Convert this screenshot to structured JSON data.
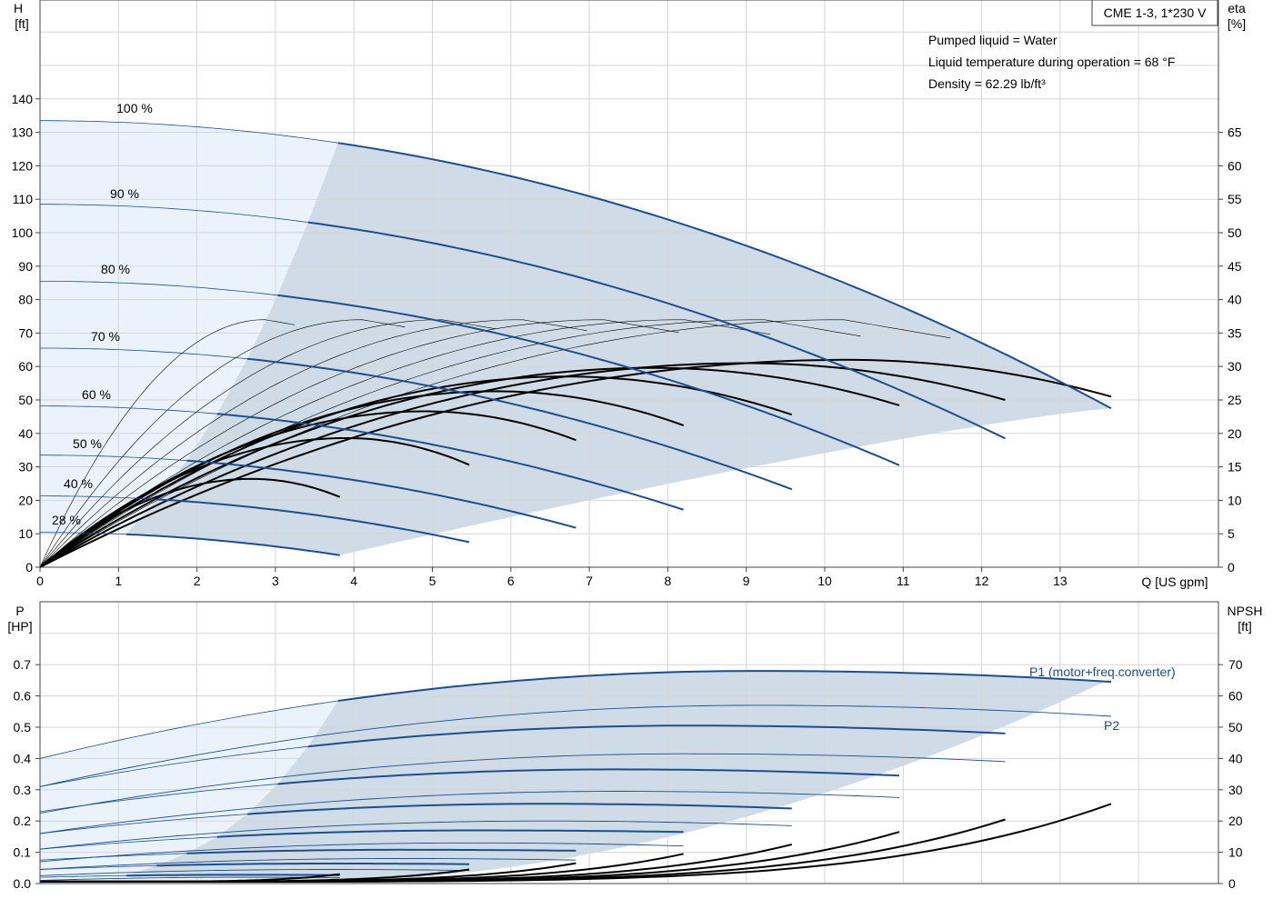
{
  "chart_data": [
    {
      "type": "line",
      "name": "pump-performance",
      "title_box": "CME 1-3, 1*230 V",
      "notes": [
        "Pumped liquid = Water",
        "Liquid temperature during operation = 68 °F",
        "Density = 62.29 lb/ft³"
      ],
      "xlabel": "Q [US gpm]",
      "xlim": [
        0,
        15
      ],
      "xticks": [
        0,
        1,
        2,
        3,
        4,
        5,
        6,
        7,
        8,
        9,
        10,
        11,
        12,
        13
      ],
      "ylabel_left": [
        "H",
        "[ft]"
      ],
      "ylim_left": [
        0,
        160
      ],
      "yticks_left": [
        0,
        10,
        20,
        30,
        40,
        50,
        60,
        70,
        80,
        90,
        100,
        110,
        120,
        130,
        140
      ],
      "ylabel_right": [
        "eta",
        "[%]"
      ],
      "ylim_right": [
        0,
        80
      ],
      "yticks_right": [
        0,
        5,
        10,
        15,
        20,
        25,
        30,
        35,
        40,
        45,
        50,
        55,
        60,
        65
      ],
      "speed_curves": [
        {
          "label": "100 %",
          "h0": 133.5,
          "qmax": 13.65,
          "hend": 47.5
        },
        {
          "label": "90 %",
          "h0": 108.5,
          "qmax": 12.3,
          "hend": 38.5
        },
        {
          "label": "80 %",
          "h0": 85.5,
          "qmax": 10.95,
          "hend": 30.5
        },
        {
          "label": "70 %",
          "h0": 65.5,
          "qmax": 9.58,
          "hend": 23.3
        },
        {
          "label": "60 %",
          "h0": 48.2,
          "qmax": 8.2,
          "hend": 17.2
        },
        {
          "label": "50 %",
          "h0": 33.5,
          "qmax": 6.83,
          "hend": 11.8
        },
        {
          "label": "40 %",
          "h0": 21.3,
          "qmax": 5.47,
          "hend": 7.5
        },
        {
          "label": "28 %",
          "h0": 10.4,
          "qmax": 3.82,
          "hend": 3.6
        }
      ],
      "eta_curves": [
        {
          "qmax": 13.65,
          "etamax": 31,
          "qpeak": 10.3,
          "etaend": 25.5
        },
        {
          "qmax": 12.3,
          "etamax": 30.5,
          "qpeak": 9.0,
          "etaend": 25
        },
        {
          "qmax": 10.95,
          "etamax": 29.8,
          "qpeak": 7.8,
          "etaend": 24.2
        },
        {
          "qmax": 9.58,
          "etamax": 28.5,
          "qpeak": 6.7,
          "etaend": 22.8
        },
        {
          "qmax": 8.2,
          "etamax": 26.3,
          "qpeak": 5.8,
          "etaend": 21.2
        },
        {
          "qmax": 6.83,
          "etamax": 23.3,
          "qpeak": 4.9,
          "etaend": 19
        },
        {
          "qmax": 5.47,
          "etamax": 19.3,
          "qpeak": 3.9,
          "etaend": 15.3
        },
        {
          "qmax": 3.82,
          "etamax": 13.2,
          "qpeak": 2.7,
          "etaend": 10.5
        }
      ]
    },
    {
      "type": "line",
      "name": "power-npsh",
      "xlim": [
        0,
        15
      ],
      "ylabel_left": [
        "P",
        "[HP]"
      ],
      "ylim_left": [
        0,
        0.75
      ],
      "yticks_left": [
        "0.0",
        "0.1",
        "0.2",
        "0.3",
        "0.4",
        "0.5",
        "0.6",
        "0.7"
      ],
      "ylabel_right": [
        "NPSH",
        "[ft]"
      ],
      "ylim_right": [
        0,
        75
      ],
      "yticks_right": [
        0,
        10,
        20,
        30,
        40,
        50,
        60,
        70
      ],
      "series_labels": {
        "p1": "P1 (motor+freq.converter)",
        "p2": "P2"
      },
      "p1_curves": [
        {
          "qmax": 13.65,
          "p0": 0.4,
          "ppeak": 0.68,
          "pend": 0.645
        },
        {
          "qmax": 12.3,
          "p0": 0.31,
          "ppeak": 0.505,
          "pend": 0.48
        },
        {
          "qmax": 10.95,
          "p0": 0.23,
          "ppeak": 0.365,
          "pend": 0.345
        },
        {
          "qmax": 9.58,
          "p0": 0.16,
          "ppeak": 0.255,
          "pend": 0.24
        },
        {
          "qmax": 8.2,
          "p0": 0.11,
          "ppeak": 0.17,
          "pend": 0.165
        },
        {
          "qmax": 6.83,
          "p0": 0.075,
          "ppeak": 0.108,
          "pend": 0.105
        },
        {
          "qmax": 5.47,
          "p0": 0.045,
          "ppeak": 0.064,
          "pend": 0.062
        },
        {
          "qmax": 3.82,
          "p0": 0.02,
          "ppeak": 0.028,
          "pend": 0.027
        }
      ],
      "p2_curves": [
        {
          "qmax": 13.65,
          "p0": 0.31,
          "ppeak": 0.57,
          "pend": 0.535
        },
        {
          "qmax": 12.3,
          "p0": 0.225,
          "ppeak": 0.415,
          "pend": 0.39
        },
        {
          "qmax": 10.95,
          "p0": 0.16,
          "ppeak": 0.295,
          "pend": 0.275
        },
        {
          "qmax": 9.58,
          "p0": 0.11,
          "ppeak": 0.2,
          "pend": 0.185
        },
        {
          "qmax": 8.2,
          "p0": 0.07,
          "ppeak": 0.13,
          "pend": 0.12
        },
        {
          "qmax": 6.83,
          "p0": 0.045,
          "ppeak": 0.08,
          "pend": 0.075
        },
        {
          "qmax": 5.47,
          "p0": 0.025,
          "ppeak": 0.045,
          "pend": 0.042
        },
        {
          "qmax": 3.82,
          "p0": 0.01,
          "ppeak": 0.02,
          "pend": 0.019
        }
      ],
      "npsh_curves": [
        {
          "qmax": 13.65,
          "nend": 25.5
        },
        {
          "qmax": 12.3,
          "nend": 20.5
        },
        {
          "qmax": 10.95,
          "nend": 16.5
        },
        {
          "qmax": 9.58,
          "nend": 12.5
        },
        {
          "qmax": 8.2,
          "nend": 9.5
        },
        {
          "qmax": 6.83,
          "nend": 6.5
        },
        {
          "qmax": 5.47,
          "nend": 4.5
        },
        {
          "qmax": 3.82,
          "nend": 3.0
        }
      ]
    }
  ],
  "colors": {
    "curve": "#1f4e8c",
    "fill_light": "#eaf3fc",
    "fill_dark": "#cfdbe6",
    "eta": "#000000"
  }
}
